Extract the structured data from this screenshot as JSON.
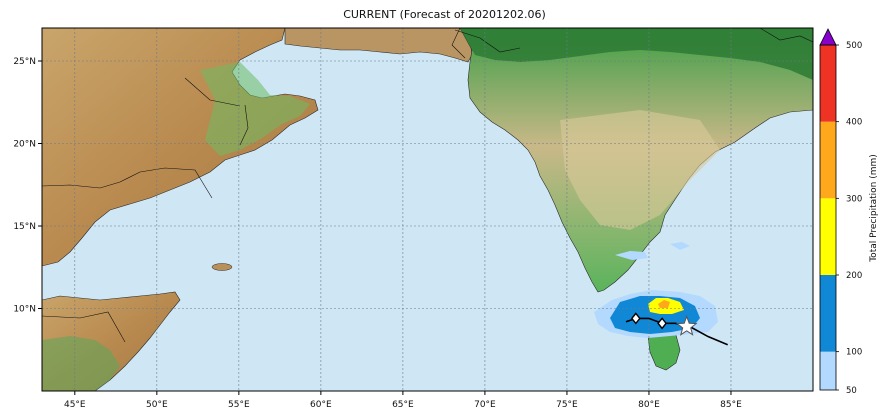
{
  "title": "CURRENT (Forecast of 20201202.06)",
  "map": {
    "lon_range": [
      43,
      90
    ],
    "lat_range": [
      5,
      27
    ],
    "lon_ticks": [
      {
        "value": 45,
        "label": "45°E"
      },
      {
        "value": 50,
        "label": "50°E"
      },
      {
        "value": 55,
        "label": "55°E"
      },
      {
        "value": 60,
        "label": "60°E"
      },
      {
        "value": 65,
        "label": "65°E"
      },
      {
        "value": 70,
        "label": "70°E"
      },
      {
        "value": 75,
        "label": "75°E"
      },
      {
        "value": 80,
        "label": "80°E"
      },
      {
        "value": 85,
        "label": "85°E"
      }
    ],
    "lat_ticks": [
      {
        "value": 10,
        "label": "10°N"
      },
      {
        "value": 15,
        "label": "15°N"
      },
      {
        "value": 20,
        "label": "20°N"
      },
      {
        "value": 25,
        "label": "25°N"
      }
    ],
    "grid": true,
    "colors": {
      "ocean": "#cfe6f5",
      "land_low": "#3aa24a",
      "land_mid": "#c9b27a",
      "land_high": "#8b5e34",
      "border": "#111111",
      "track": "#000000"
    }
  },
  "colorbar": {
    "label": "Total Precipitation (mm)",
    "ticks": [
      "50",
      "100",
      "200",
      "300",
      "400",
      "500"
    ],
    "bins": [
      {
        "from": 50,
        "to": 100,
        "color": "#b3d9ff"
      },
      {
        "from": 100,
        "to": 200,
        "color": "#1188d6"
      },
      {
        "from": 200,
        "to": 300,
        "color": "#ffff00"
      },
      {
        "from": 300,
        "to": 400,
        "color": "#ffa81c"
      },
      {
        "from": 400,
        "to": 500,
        "color": "#ee3324"
      }
    ],
    "extend_color": "#8800cc",
    "extend": "max"
  },
  "track": {
    "points": [
      [
        84.8,
        7.8
      ],
      [
        83.6,
        8.3
      ],
      [
        82.5,
        8.9
      ],
      [
        81.6,
        9.1
      ],
      [
        80.8,
        9.1
      ],
      [
        80.0,
        9.4
      ],
      [
        79.2,
        9.4
      ],
      [
        78.6,
        9.2
      ]
    ],
    "current_position": [
      82.3,
      8.9
    ],
    "diamond_positions": [
      [
        80.8,
        9.1
      ],
      [
        79.2,
        9.4
      ]
    ]
  }
}
